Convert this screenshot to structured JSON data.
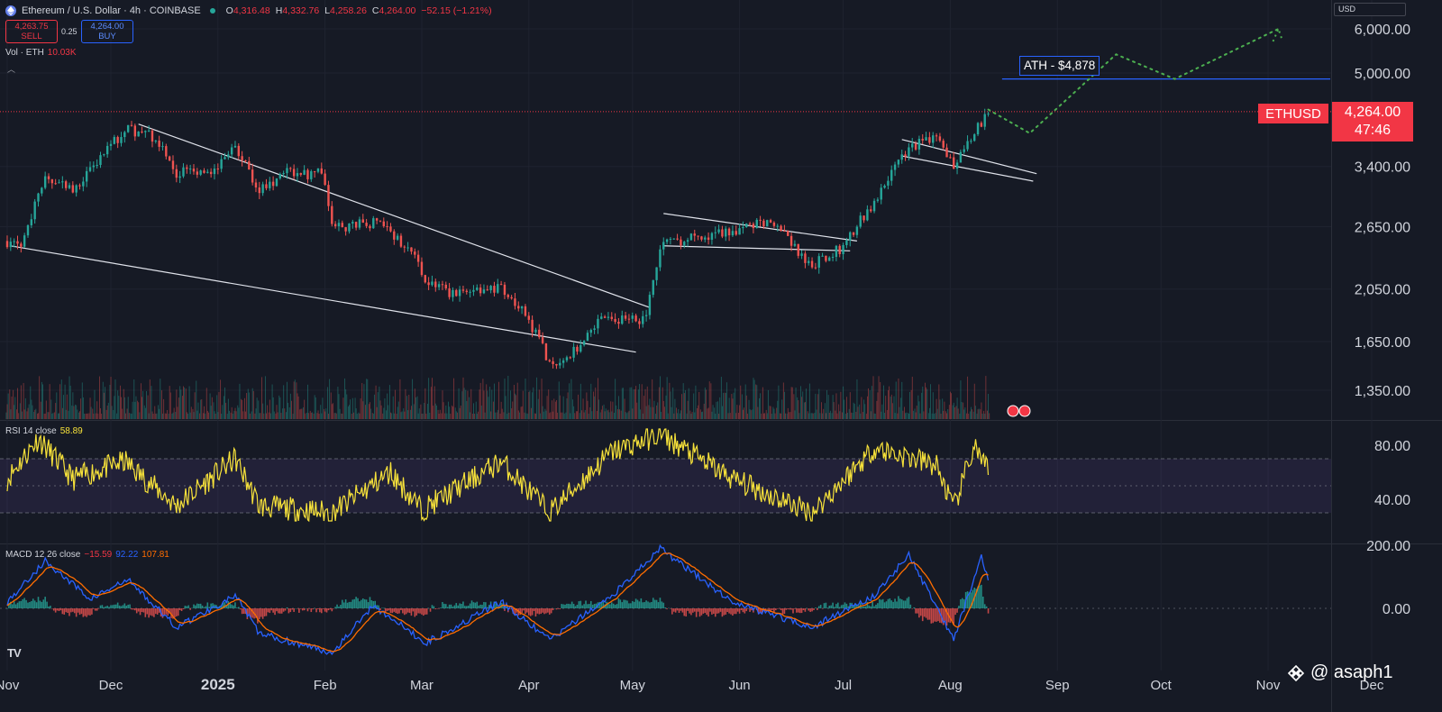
{
  "header": {
    "symbol_title": "Ethereum / U.S. Dollar · 4h · COINBASE",
    "open_label": "O",
    "open": "4,316.48",
    "high_label": "H",
    "high": "4,332.76",
    "low_label": "L",
    "low": "4,258.26",
    "close_label": "C",
    "close": "4,264.00",
    "change": "−52.15 (−1.21%)"
  },
  "trade": {
    "sell_price": "4,263.75",
    "sell_label": "SELL",
    "spread": "0.25",
    "buy_price": "4,264.00",
    "buy_label": "BUY"
  },
  "volume_legend": {
    "label": "Vol · ETH",
    "value": "10.03K"
  },
  "rsi_legend": {
    "label": "RSI 14 close",
    "value": "58.89"
  },
  "macd_legend": {
    "label": "MACD 12 26 close",
    "hist": "−15.59",
    "macd": "92.22",
    "signal": "107.81"
  },
  "currency_button": "USD",
  "last_price": {
    "symbol": "ETHUSD",
    "price": "4,264.00",
    "countdown": "47:46"
  },
  "ath_label": "ATH - $4,878",
  "watermark": "@ asaph1",
  "colors": {
    "up": "#26a69a",
    "down": "#ef5350",
    "rsi": "#f7e23a",
    "macd": "#2962ff",
    "signal": "#ff6d00",
    "projection": "#4caf50",
    "ath_line": "#2962ff",
    "last_price": "#f23645"
  },
  "chart_data": [
    {
      "type": "candlestick",
      "title": "Ethereum / U.S. Dollar · 4h · COINBASE",
      "scale": "log",
      "y_ticks": [
        1350,
        1650,
        2050,
        2650,
        3400,
        5000,
        6000
      ],
      "y_tick_labels": [
        "1,350.00",
        "1,650.00",
        "2,050.00",
        "2,650.00",
        "3,400.00",
        "5,000.00",
        "6,000.00"
      ],
      "x_tick_labels": [
        "Nov",
        "Dec",
        "2025",
        "Feb",
        "Mar",
        "Apr",
        "May",
        "Jun",
        "Jul",
        "Aug",
        "Sep",
        "Oct",
        "Nov",
        "Dec"
      ],
      "approx_close_path": [
        {
          "x": "2024-11-01",
          "y": 2500
        },
        {
          "x": "2024-11-05",
          "y": 2450
        },
        {
          "x": "2024-11-12",
          "y": 3200
        },
        {
          "x": "2024-11-20",
          "y": 3100
        },
        {
          "x": "2024-12-01",
          "y": 3700
        },
        {
          "x": "2024-12-06",
          "y": 3950
        },
        {
          "x": "2024-12-13",
          "y": 3850
        },
        {
          "x": "2024-12-20",
          "y": 3300
        },
        {
          "x": "2024-12-31",
          "y": 3350
        },
        {
          "x": "2025-01-06",
          "y": 3650
        },
        {
          "x": "2025-01-13",
          "y": 3100
        },
        {
          "x": "2025-01-20",
          "y": 3300
        },
        {
          "x": "2025-01-31",
          "y": 3300
        },
        {
          "x": "2025-02-03",
          "y": 2650
        },
        {
          "x": "2025-02-15",
          "y": 2700
        },
        {
          "x": "2025-02-25",
          "y": 2450
        },
        {
          "x": "2025-03-02",
          "y": 2150
        },
        {
          "x": "2025-03-10",
          "y": 2000
        },
        {
          "x": "2025-03-24",
          "y": 2050
        },
        {
          "x": "2025-03-31",
          "y": 1850
        },
        {
          "x": "2025-04-07",
          "y": 1500
        },
        {
          "x": "2025-04-15",
          "y": 1600
        },
        {
          "x": "2025-04-22",
          "y": 1800
        },
        {
          "x": "2025-05-05",
          "y": 1800
        },
        {
          "x": "2025-05-09",
          "y": 2450
        },
        {
          "x": "2025-05-20",
          "y": 2550
        },
        {
          "x": "2025-06-10",
          "y": 2700
        },
        {
          "x": "2025-06-22",
          "y": 2250
        },
        {
          "x": "2025-07-01",
          "y": 2450
        },
        {
          "x": "2025-07-10",
          "y": 2950
        },
        {
          "x": "2025-07-20",
          "y": 3700
        },
        {
          "x": "2025-07-28",
          "y": 3800
        },
        {
          "x": "2025-08-02",
          "y": 3450
        },
        {
          "x": "2025-08-08",
          "y": 3900
        },
        {
          "x": "2025-08-12",
          "y": 4300
        }
      ],
      "last_price": 4264.0,
      "ath": 4878,
      "trendlines": [
        {
          "from": {
            "x": "2024-12-09",
            "y": 4050
          },
          "to": {
            "x": "2025-05-06",
            "y": 1900
          }
        },
        {
          "from": {
            "x": "2024-11-02",
            "y": 2450
          },
          "to": {
            "x": "2025-05-02",
            "y": 1580
          }
        },
        {
          "from": {
            "x": "2025-05-10",
            "y": 2800
          },
          "to": {
            "x": "2025-07-05",
            "y": 2500
          }
        },
        {
          "from": {
            "x": "2025-05-10",
            "y": 2450
          },
          "to": {
            "x": "2025-07-03",
            "y": 2400
          }
        },
        {
          "from": {
            "x": "2025-07-18",
            "y": 3800
          },
          "to": {
            "x": "2025-08-26",
            "y": 3300
          }
        },
        {
          "from": {
            "x": "2025-07-18",
            "y": 3550
          },
          "to": {
            "x": "2025-08-25",
            "y": 3200
          }
        }
      ],
      "projection_path": [
        {
          "x": "2025-08-12",
          "y": 4300
        },
        {
          "x": "2025-08-24",
          "y": 3900
        },
        {
          "x": "2025-09-18",
          "y": 5400
        },
        {
          "x": "2025-10-05",
          "y": 4878
        },
        {
          "x": "2025-11-04",
          "y": 6000
        }
      ]
    },
    {
      "type": "bar",
      "title": "Vol · ETH",
      "last_value": "10.03K"
    },
    {
      "type": "line",
      "title": "RSI 14 close",
      "y_ticks": [
        40,
        80
      ],
      "y_tick_labels": [
        "40.00",
        "80.00"
      ],
      "band": [
        30,
        70
      ],
      "last_value": 58.89,
      "approx_path": [
        {
          "x": "2024-11-01",
          "y": 55
        },
        {
          "x": "2024-11-10",
          "y": 85
        },
        {
          "x": "2024-11-20",
          "y": 55
        },
        {
          "x": "2024-12-05",
          "y": 68
        },
        {
          "x": "2024-12-20",
          "y": 35
        },
        {
          "x": "2025-01-06",
          "y": 70
        },
        {
          "x": "2025-01-13",
          "y": 35
        },
        {
          "x": "2025-02-03",
          "y": 30
        },
        {
          "x": "2025-02-20",
          "y": 60
        },
        {
          "x": "2025-03-01",
          "y": 32
        },
        {
          "x": "2025-03-24",
          "y": 68
        },
        {
          "x": "2025-04-07",
          "y": 30
        },
        {
          "x": "2025-04-25",
          "y": 75
        },
        {
          "x": "2025-05-09",
          "y": 88
        },
        {
          "x": "2025-05-30",
          "y": 55
        },
        {
          "x": "2025-06-22",
          "y": 30
        },
        {
          "x": "2025-07-10",
          "y": 78
        },
        {
          "x": "2025-07-28",
          "y": 65
        },
        {
          "x": "2025-08-02",
          "y": 33
        },
        {
          "x": "2025-08-08",
          "y": 80
        },
        {
          "x": "2025-08-12",
          "y": 58.89
        }
      ]
    },
    {
      "type": "line",
      "title": "MACD 12 26 close",
      "y_ticks": [
        0,
        200
      ],
      "y_tick_labels": [
        "0.00",
        "200.00"
      ],
      "series": [
        {
          "name": "MACD",
          "last_value": 92.22
        },
        {
          "name": "Signal",
          "last_value": 107.81
        },
        {
          "name": "Histogram",
          "last_value": -15.59
        }
      ],
      "approx_macd_path": [
        {
          "x": "2024-11-01",
          "y": 20
        },
        {
          "x": "2024-11-12",
          "y": 150
        },
        {
          "x": "2024-11-25",
          "y": 30
        },
        {
          "x": "2024-12-06",
          "y": 90
        },
        {
          "x": "2024-12-20",
          "y": -60
        },
        {
          "x": "2025-01-06",
          "y": 40
        },
        {
          "x": "2025-01-13",
          "y": -80
        },
        {
          "x": "2025-02-03",
          "y": -140
        },
        {
          "x": "2025-02-15",
          "y": 10
        },
        {
          "x": "2025-03-02",
          "y": -110
        },
        {
          "x": "2025-03-24",
          "y": 20
        },
        {
          "x": "2025-04-07",
          "y": -100
        },
        {
          "x": "2025-04-25",
          "y": 40
        },
        {
          "x": "2025-05-09",
          "y": 190
        },
        {
          "x": "2025-05-30",
          "y": 20
        },
        {
          "x": "2025-06-22",
          "y": -60
        },
        {
          "x": "2025-07-10",
          "y": 40
        },
        {
          "x": "2025-07-20",
          "y": 170
        },
        {
          "x": "2025-08-02",
          "y": -100
        },
        {
          "x": "2025-08-10",
          "y": 170
        },
        {
          "x": "2025-08-12",
          "y": 92.22
        }
      ]
    }
  ]
}
